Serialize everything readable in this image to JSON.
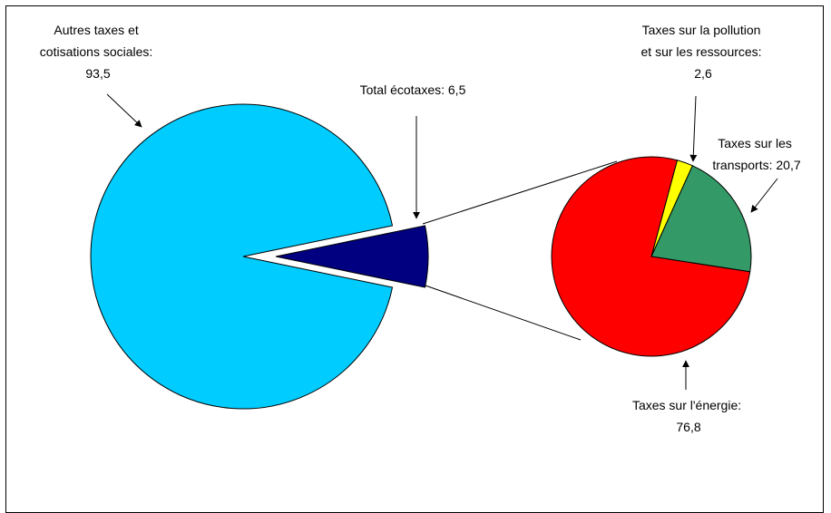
{
  "chart_data": [
    {
      "type": "pie",
      "title": "",
      "slices": [
        {
          "label_lines": [
            "Autres taxes et",
            "cotisations sociales:",
            "93,5"
          ],
          "value": 93.5,
          "color": "#00ccff"
        },
        {
          "label_lines": [
            "Total écotaxes: 6,5"
          ],
          "value": 6.5,
          "color": "#000080"
        }
      ]
    },
    {
      "type": "pie",
      "title": "",
      "slices": [
        {
          "label_lines": [
            "Taxes sur la pollution",
            "et sur les ressources:",
            "2,6"
          ],
          "value": 2.6,
          "color": "#ffff00"
        },
        {
          "label_lines": [
            "Taxes sur les",
            "transports: 20,7"
          ],
          "value": 20.7,
          "color": "#339966"
        },
        {
          "label_lines": [
            "Taxes sur l'énergie:",
            "76,8"
          ],
          "value": 76.8,
          "color": "#ff0000"
        }
      ]
    }
  ]
}
